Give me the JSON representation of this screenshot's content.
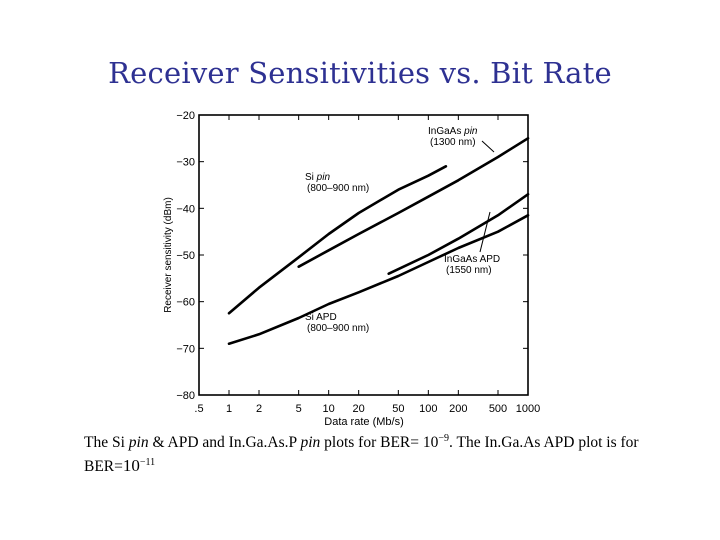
{
  "slide": {
    "title": "Receiver Sensitivities vs. Bit Rate"
  },
  "chart_data": {
    "type": "line",
    "xscale": "log",
    "xlabel": "Data rate (Mb/s)",
    "ylabel": "Receiver sensitivity (dBm)",
    "xlim": [
      0.5,
      1000
    ],
    "ylim": [
      -80,
      -20
    ],
    "xticks": [
      0.5,
      1,
      2,
      5,
      10,
      20,
      50,
      100,
      200,
      500,
      1000
    ],
    "xtick_labels": [
      ".5",
      "1",
      "2",
      "5",
      "10",
      "20",
      "50",
      "100",
      "200",
      "500",
      "1000"
    ],
    "yticks": [
      -20,
      -30,
      -40,
      -50,
      -60,
      -70,
      -80
    ],
    "ytick_labels": [
      "−20",
      "−30",
      "−40",
      "−50",
      "−60",
      "−70",
      "−80"
    ],
    "series": [
      {
        "name": "Si pin (800–900 nm)",
        "x": [
          1,
          2,
          5,
          10,
          20,
          50,
          100,
          150
        ],
        "y": [
          -62.5,
          -57,
          -50.5,
          -45.5,
          -41,
          -36,
          -33,
          -31
        ]
      },
      {
        "name": "InGaAs pin (1300 nm)",
        "x": [
          5,
          10,
          20,
          50,
          100,
          200,
          500,
          1000
        ],
        "y": [
          -52.5,
          -49,
          -45.5,
          -41,
          -37.5,
          -34,
          -29,
          -25
        ]
      },
      {
        "name": "InGaAs APD (1550 nm)",
        "x": [
          40,
          100,
          200,
          500,
          1000
        ],
        "y": [
          -54,
          -50,
          -46.5,
          -41.5,
          -37
        ]
      },
      {
        "name": "Si APD (800–900 nm)",
        "x": [
          1,
          2,
          5,
          10,
          20,
          50,
          100,
          200,
          500,
          1000
        ],
        "y": [
          -69,
          -67,
          -63.5,
          -60.5,
          -58,
          -54.5,
          -51.5,
          -48.5,
          -45,
          -41.5
        ]
      }
    ],
    "annotations": [
      {
        "series": "Si pin",
        "line1_prefix": "Si ",
        "line1_italic": "pin",
        "line2": "(800–900 nm)"
      },
      {
        "series": "InGaAs pin",
        "line1_prefix": "InGaAs ",
        "line1_italic": "pin",
        "line2": "(1300 nm)"
      },
      {
        "series": "InGaAs APD",
        "line1_prefix": "InGaAs APD",
        "line1_italic": "",
        "line2": "(1550 nm)"
      },
      {
        "series": "Si APD",
        "line1_prefix": "Si APD",
        "line1_italic": "",
        "line2": "(800–900 nm)"
      }
    ]
  },
  "caption": {
    "part1": "The Si ",
    "pin1": "pin",
    "part2": " & APD and In.Ga.As.P ",
    "pin2": "pin",
    "part3": " plots for BER= ",
    "exp1_base": "10",
    "exp1_sup": "−9",
    "part4": ". The In.Ga.As APD plot is for",
    "line2_prefix": "BER=",
    "exp2_base": "10",
    "exp2_sup": "−11"
  }
}
